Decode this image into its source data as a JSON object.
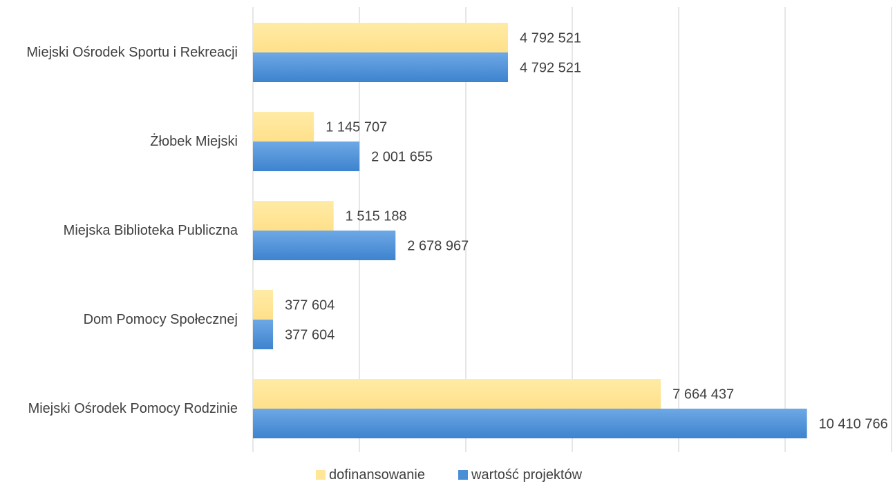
{
  "chart_data": {
    "type": "bar",
    "orientation": "horizontal",
    "categories": [
      "Miejski Ośrodek Sportu i Rekreacji",
      "Żłobek Miejski",
      "Miejska Biblioteka Publiczna",
      "Dom Pomocy Społecznej",
      "Miejski Ośrodek Pomocy Rodzinie"
    ],
    "series": [
      {
        "name": "dofinansowanie",
        "color": "#FFE699",
        "values": [
          4792521,
          1145707,
          1515188,
          377604,
          7664437
        ],
        "labels": [
          "4 792 521",
          "1 145 707",
          "1 515 188",
          "377 604",
          "7 664 437"
        ]
      },
      {
        "name": "wartość projektów",
        "color": "#4A8FD6",
        "values": [
          4792521,
          2001655,
          2678967,
          377604,
          10410766
        ],
        "labels": [
          "4 792 521",
          "2 001 655",
          "2 678 967",
          "377 604",
          "10 410 766"
        ]
      }
    ],
    "xlim": [
      0,
      12000000
    ],
    "grid": true,
    "legend": "bottom",
    "title": "",
    "xlabel": "",
    "ylabel": ""
  }
}
